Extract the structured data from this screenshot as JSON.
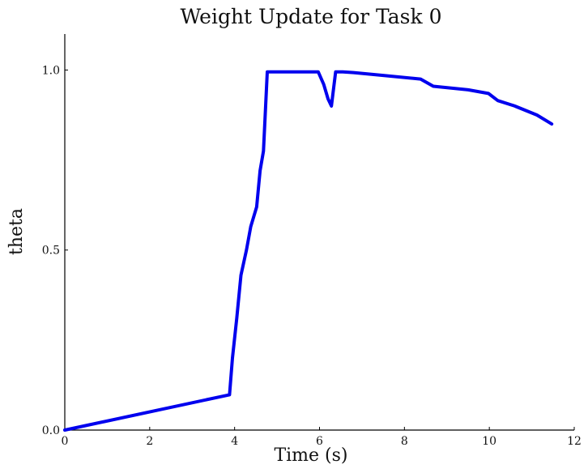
{
  "chart_data": {
    "type": "line",
    "title": "Weight Update for Task 0",
    "xlabel": "Time (s)",
    "ylabel": "theta",
    "xlim": [
      0,
      12
    ],
    "ylim": [
      0,
      1.1
    ],
    "xticks": [
      0,
      2,
      4,
      6,
      8,
      10,
      12
    ],
    "xtick_labels": [
      "0",
      "2",
      "4",
      "6",
      "8",
      "10",
      "12"
    ],
    "yticks": [
      0,
      0.5,
      1.0
    ],
    "ytick_labels": [
      "0.0",
      "0.5",
      "1.0"
    ],
    "grid": false,
    "legend": "none",
    "series": [
      {
        "color": "#0000ee",
        "x": [
          0,
          3.88,
          3.95,
          4.05,
          4.15,
          4.28,
          4.38,
          4.52,
          4.6,
          4.68,
          4.77,
          5.0,
          5.5,
          5.97,
          6.1,
          6.2,
          6.28,
          6.38,
          6.55,
          6.8,
          7.5,
          8.38,
          8.68,
          9.5,
          9.98,
          10.2,
          10.6,
          11.12,
          11.47
        ],
        "y": [
          0,
          0.098,
          0.2,
          0.31,
          0.43,
          0.5,
          0.565,
          0.62,
          0.72,
          0.775,
          0.995,
          0.995,
          0.995,
          0.995,
          0.96,
          0.92,
          0.9,
          0.995,
          0.995,
          0.993,
          0.985,
          0.975,
          0.955,
          0.945,
          0.935,
          0.915,
          0.9,
          0.875,
          0.85
        ]
      }
    ]
  }
}
